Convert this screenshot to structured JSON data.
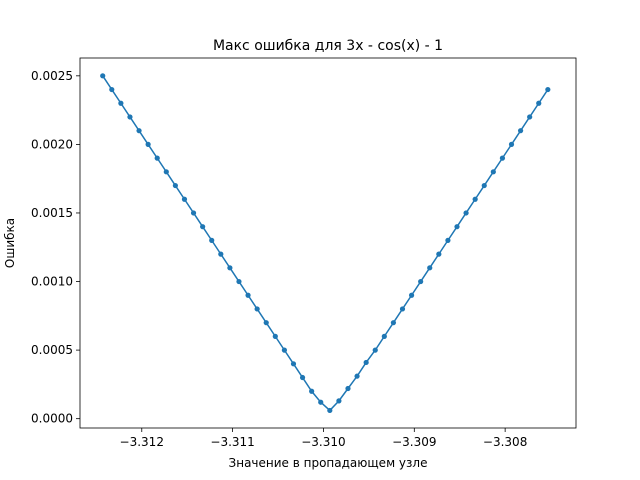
{
  "chart_data": {
    "type": "line",
    "title": "Макс ошибка для 3x - cos(x) - 1",
    "xlabel": "Значение в пропадающем узле",
    "ylabel": "Ошибка",
    "xlim": [
      -3.31268,
      -3.30722
    ],
    "ylim": [
      -6.8e-05,
      0.00263
    ],
    "x_ticks": [
      -3.312,
      -3.311,
      -3.31,
      -3.309,
      -3.308
    ],
    "x_tick_labels": [
      "−3.312",
      "−3.311",
      "−3.310",
      "−3.309",
      "−3.308"
    ],
    "y_ticks": [
      0,
      0.0005,
      0.001,
      0.0015,
      0.002,
      0.0025
    ],
    "y_tick_labels": [
      "0.0000",
      "0.0005",
      "0.0010",
      "0.0015",
      "0.0020",
      "0.0025"
    ],
    "grid": false,
    "color": "#1f77b4",
    "series": [
      {
        "x": [
          -3.31243,
          -3.31233,
          -3.31223,
          -3.31213,
          -3.31203,
          -3.31193,
          -3.31183,
          -3.31173,
          -3.31163,
          -3.31153,
          -3.31143,
          -3.31133,
          -3.31123,
          -3.31113,
          -3.31103,
          -3.31093,
          -3.31083,
          -3.31073,
          -3.31063,
          -3.31053,
          -3.31043,
          -3.31033,
          -3.31023,
          -3.31013,
          -3.31003,
          -3.30993,
          -3.30983,
          -3.30973,
          -3.30963,
          -3.30953,
          -3.30943,
          -3.30933,
          -3.30923,
          -3.30913,
          -3.30903,
          -3.30893,
          -3.30883,
          -3.30873,
          -3.30863,
          -3.30853,
          -3.30843,
          -3.30833,
          -3.30823,
          -3.30813,
          -3.30803,
          -3.30793,
          -3.30783,
          -3.30773,
          -3.30763,
          -3.30753
        ],
        "y": [
          0.0025,
          0.0024,
          0.0023,
          0.0022,
          0.0021,
          0.002,
          0.0019,
          0.0018,
          0.0017,
          0.0016,
          0.0015,
          0.0014,
          0.0013,
          0.0012,
          0.0011,
          0.001,
          0.0009,
          0.0008,
          0.0007,
          0.0006,
          0.0005,
          0.0004,
          0.0003,
          0.0002,
          0.00012,
          6e-05,
          0.00013,
          0.00022,
          0.00031,
          0.00041,
          0.0005,
          0.0006,
          0.0007,
          0.0008,
          0.0009,
          0.001,
          0.0011,
          0.0012,
          0.0013,
          0.0014,
          0.0015,
          0.0016,
          0.0017,
          0.0018,
          0.0019,
          0.002,
          0.0021,
          0.0022,
          0.0023,
          0.0024
        ]
      }
    ]
  }
}
